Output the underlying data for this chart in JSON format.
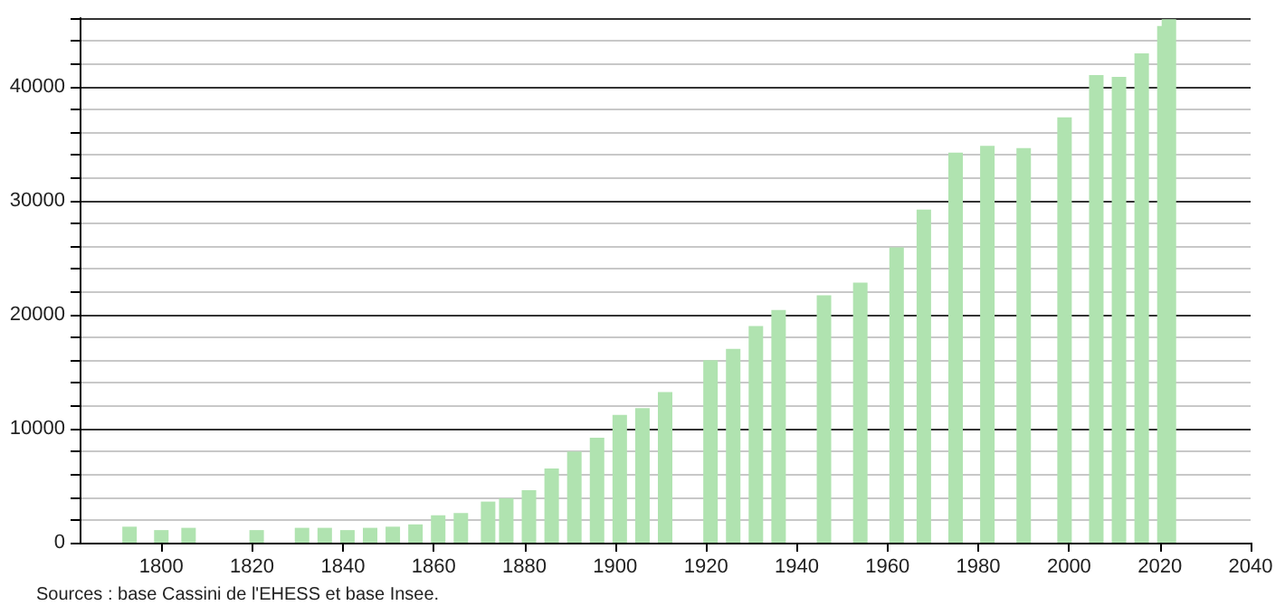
{
  "chart_data": {
    "type": "bar",
    "x": [
      1793,
      1800,
      1806,
      1821,
      1831,
      1836,
      1841,
      1846,
      1851,
      1856,
      1861,
      1866,
      1872,
      1876,
      1881,
      1886,
      1891,
      1896,
      1901,
      1906,
      1911,
      1921,
      1926,
      1931,
      1936,
      1946,
      1954,
      1962,
      1968,
      1975,
      1982,
      1990,
      1999,
      2006,
      2011,
      2016,
      2021,
      2022
    ],
    "series": [
      {
        "color": "#b0e3b0",
        "values": [
          1400,
          1100,
          1300,
          1100,
          1300,
          1300,
          1100,
          1300,
          1400,
          1600,
          2400,
          2600,
          3600,
          3900,
          4600,
          6500,
          8000,
          9200,
          11200,
          11800,
          13200,
          16000,
          17000,
          19000,
          20400,
          21700,
          22800,
          25900,
          29200,
          34200,
          34800,
          34600,
          37300,
          41000,
          40850,
          42900,
          45300,
          45900
        ]
      }
    ],
    "xlim": [
      1782,
      2040
    ],
    "xticks": [
      1800,
      1820,
      1840,
      1860,
      1880,
      1900,
      1920,
      1940,
      1960,
      1980,
      2000,
      2020,
      2040
    ],
    "ylim": [
      0,
      46000
    ],
    "yticks": [
      0,
      {
        "value": 2000,
        "label": null
      },
      {
        "value": 4000,
        "label": null
      },
      {
        "value": 6000,
        "label": null
      },
      {
        "value": 8000,
        "label": null
      },
      10000,
      {
        "value": 12000,
        "label": null
      },
      {
        "value": 14000,
        "label": null
      },
      {
        "value": 16000,
        "label": null
      },
      {
        "value": 18000,
        "label": null
      },
      20000,
      {
        "value": 22000,
        "label": null
      },
      {
        "value": 24000,
        "label": null
      },
      {
        "value": 26000,
        "label": null
      },
      {
        "value": 28000,
        "label": null
      },
      30000,
      {
        "value": 32000,
        "label": null
      },
      {
        "value": 34000,
        "label": null
      },
      {
        "value": 36000,
        "label": null
      },
      {
        "value": 38000,
        "label": null
      },
      40000,
      {
        "value": 42000,
        "label": null
      },
      {
        "value": 44000,
        "label": null
      },
      {
        "value": 46000,
        "label": null
      }
    ],
    "grid": "y",
    "annotations": [
      "Sources : base Cassini de l'EHESS et base Insee."
    ]
  }
}
